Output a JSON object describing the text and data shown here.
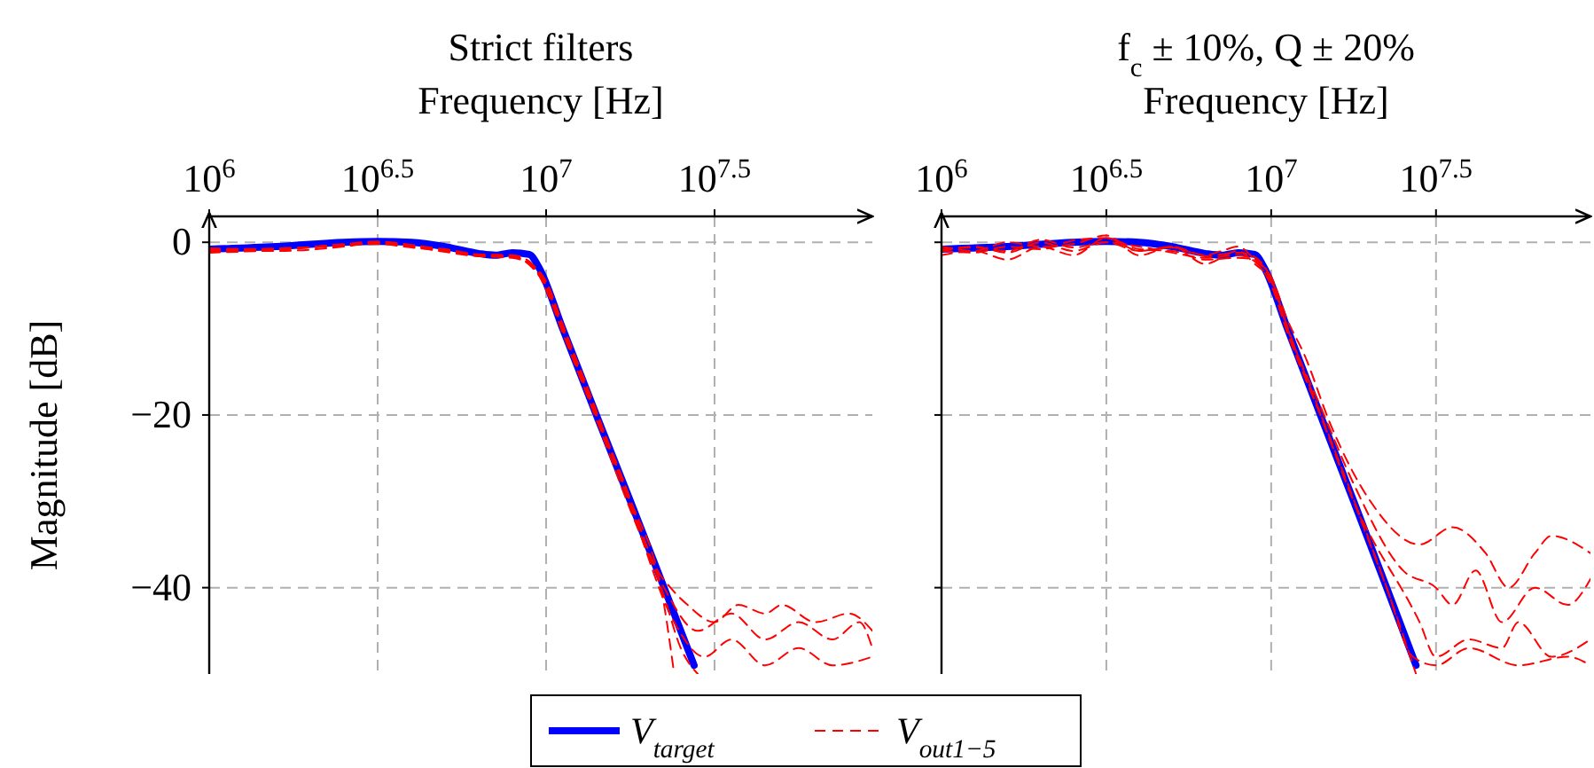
{
  "chart_data": [
    {
      "type": "line",
      "title": "Strict filters",
      "xlabel": "Frequency [Hz]",
      "ylabel": "Magnitude [dB]",
      "log": "x",
      "grid": true,
      "legend": "bottom",
      "xlim": [
        1000000,
        93000000
      ],
      "xticks": [
        {
          "value": 1000000,
          "label": "10$^{6}$"
        },
        {
          "value": 3162278,
          "label": "10$^{6.5}$"
        },
        {
          "value": 10000000,
          "label": "10$^{7}$"
        },
        {
          "value": 31622777,
          "label": "10$^{7.5}$"
        }
      ],
      "ylim": [
        -50,
        3
      ],
      "yticks": [
        0,
        -20,
        -40
      ],
      "series": [
        {
          "name": "V$_{target}$",
          "color": "#0000ff",
          "line_style": "solid",
          "x": [
            1000000.0,
            1580000.0,
            2510000.0,
            3160000.0,
            3980000.0,
            5010000.0,
            6310000.0,
            7080000.0,
            7940000.0,
            8910000.0,
            9550000.0,
            11200000.0,
            14100000.0,
            17800000.0,
            22400000.0,
            27500000.0
          ],
          "values": [
            -0.8,
            -0.5,
            0,
            0.1,
            0,
            -0.5,
            -1.3,
            -1.5,
            -1.2,
            -1.4,
            -3,
            -10,
            -20,
            -30,
            -40,
            -49
          ]
        },
        {
          "name": "V$_{out}$$_{1−5}$",
          "color": "#ff0000",
          "line_style": "dashed",
          "x": [
            1000000.0,
            1580000.0,
            2510000.0,
            3160000.0,
            3980000.0,
            5010000.0,
            6310000.0,
            7940000.0,
            8910000.0,
            10000000.0,
            11200000.0,
            14100000.0,
            17800000.0,
            21400000.0,
            23400000.0,
            26300000.0,
            31600000.0,
            37200000.0,
            44700000.0,
            50100000.0,
            63100000.0,
            79400000.0,
            93000000.0
          ],
          "values": [
            -1.2,
            -0.9,
            -0.3,
            -0.2,
            -0.6,
            -1.0,
            -1.6,
            -1.8,
            -2.5,
            -5,
            -10,
            -20,
            -30,
            -38,
            -40,
            -42,
            -44,
            -42,
            -43,
            -42,
            -44,
            -43,
            -45
          ]
        },
        {
          "color": "#ff0000",
          "line_style": "dashed",
          "x": [
            1000000.0,
            1580000.0,
            2510000.0,
            3160000.0,
            3980000.0,
            5010000.0,
            6310000.0,
            7940000.0,
            8910000.0,
            10000000.0,
            11200000.0,
            14100000.0,
            17800000.0,
            22400000.0,
            28200000.0,
            35500000.0,
            44700000.0,
            56200000.0,
            70800000.0,
            85100000.0,
            93000000.0
          ],
          "values": [
            -1,
            -1,
            -0.5,
            0,
            -0.4,
            -0.8,
            -1.4,
            -1.5,
            -2.2,
            -5.5,
            -10.5,
            -20.5,
            -31,
            -40,
            -45,
            -43,
            -46,
            -44,
            -46,
            -44,
            -47
          ]
        },
        {
          "color": "#ff0000",
          "line_style": "dashed",
          "x": [
            1000000.0,
            1580000.0,
            2510000.0,
            3160000.0,
            3980000.0,
            5010000.0,
            6310000.0,
            7940000.0,
            8910000.0,
            10000000.0,
            11200000.0,
            14100000.0,
            17800000.0,
            24000000.0,
            29500000.0,
            35500000.0,
            44700000.0,
            56200000.0,
            70800000.0,
            93000000.0
          ],
          "values": [
            -0.7,
            -0.8,
            -0.2,
            0.1,
            -0.3,
            -0.9,
            -1.5,
            -1.7,
            -2.4,
            -4.5,
            -9.5,
            -19.5,
            -30.5,
            -44,
            -48,
            -46,
            -49,
            -47,
            -49,
            -48
          ]
        },
        {
          "color": "#ff0000",
          "line_style": "dashed",
          "x": [
            1000000.0,
            1580000.0,
            2510000.0,
            3160000.0,
            3980000.0,
            5010000.0,
            6310000.0,
            7940000.0,
            8910000.0,
            10000000.0,
            11200000.0,
            14100000.0,
            17800000.0,
            22400000.0,
            25100000.0,
            28200000.0
          ],
          "values": [
            -0.9,
            -0.7,
            -0.4,
            0,
            -0.5,
            -1.1,
            -1.6,
            -1.6,
            -2.6,
            -5.2,
            -10.2,
            -20.2,
            -30.2,
            -41,
            -47,
            -50
          ]
        },
        {
          "color": "#ff0000",
          "line_style": "dashed",
          "x": [
            1000000.0,
            1580000.0,
            2510000.0,
            3160000.0,
            3980000.0,
            5010000.0,
            6310000.0,
            7940000.0,
            8910000.0,
            10000000.0,
            11200000.0,
            14100000.0,
            17800000.0,
            22400000.0,
            24000000.0
          ],
          "values": [
            -1,
            -0.8,
            -0.3,
            -0.1,
            -0.5,
            -0.9,
            -1.5,
            -1.7,
            -2.3,
            -4.8,
            -9.8,
            -19.8,
            -29.8,
            -42,
            -50
          ]
        }
      ]
    },
    {
      "type": "line",
      "title": "f$_{c}$ ± 10%, Q ± 20%",
      "xlabel": "Frequency [Hz]",
      "log": "x",
      "grid": true,
      "tick_labels": "x",
      "xlim": [
        1000000,
        93000000
      ],
      "xticks": [
        {
          "value": 1000000,
          "label": "10$^{6}$"
        },
        {
          "value": 3162278,
          "label": "10$^{6.5}$"
        },
        {
          "value": 10000000,
          "label": "10$^{7}$"
        },
        {
          "value": 31622777,
          "label": "10$^{7.5}$"
        }
      ],
      "ylim": [
        -50,
        3
      ],
      "yticks": [
        0,
        -20,
        -40
      ],
      "series": [
        {
          "color": "#0000ff",
          "line_style": "solid",
          "x": [
            1000000.0,
            1580000.0,
            2510000.0,
            3160000.0,
            3980000.0,
            5010000.0,
            6310000.0,
            7080000.0,
            7940000.0,
            8910000.0,
            9550000.0,
            11200000.0,
            14100000.0,
            17800000.0,
            22400000.0,
            27500000.0
          ],
          "values": [
            -0.8,
            -0.5,
            0,
            0.1,
            0,
            -0.5,
            -1.3,
            -1.5,
            -1.2,
            -1.4,
            -3,
            -10,
            -20,
            -30,
            -40,
            -49
          ]
        },
        {
          "color": "#ff0000",
          "line_style": "dashed",
          "x": [
            1000000.0,
            1260000.0,
            1580000.0,
            2000000.0,
            2510000.0,
            3160000.0,
            3980000.0,
            5010000.0,
            6310000.0,
            7080000.0,
            7940000.0,
            8910000.0,
            10000000.0,
            11200000.0,
            12600000.0,
            15100000.0,
            20000000.0,
            28200000.0,
            35500000.0,
            44700000.0,
            52500000.0,
            63100000.0,
            70800000.0,
            93000000.0
          ],
          "values": [
            -1.5,
            -1,
            -2,
            -0.5,
            -1.5,
            0.5,
            -1,
            -0.5,
            -1.5,
            -1,
            -0.5,
            -2,
            -4,
            -9,
            -13,
            -21,
            -30,
            -35,
            -33,
            -36,
            -40,
            -36,
            -34,
            -36
          ]
        },
        {
          "color": "#ff0000",
          "line_style": "dashed",
          "x": [
            1000000.0,
            1260000.0,
            1580000.0,
            2000000.0,
            2510000.0,
            3160000.0,
            3980000.0,
            5010000.0,
            6310000.0,
            7940000.0,
            8910000.0,
            10000000.0,
            11200000.0,
            14100000.0,
            17800000.0,
            25100000.0,
            31600000.0,
            35500000.0,
            41700000.0,
            50100000.0,
            63100000.0,
            79400000.0,
            93000000.0
          ],
          "values": [
            -0.5,
            -1,
            0,
            -0.5,
            -0.2,
            0.8,
            -1.5,
            -0.5,
            -2.5,
            -1,
            -2.5,
            -4.5,
            -10,
            -19,
            -28,
            -38,
            -40,
            -42,
            -38,
            -44,
            -40,
            -42,
            -39
          ]
        },
        {
          "color": "#ff0000",
          "line_style": "dashed",
          "x": [
            1000000.0,
            1260000.0,
            1580000.0,
            2000000.0,
            2510000.0,
            3160000.0,
            3980000.0,
            5010000.0,
            6310000.0,
            7940000.0,
            8910000.0,
            10000000.0,
            11200000.0,
            14100000.0,
            17800000.0,
            28200000.0,
            31600000.0,
            39800000.0,
            50100000.0,
            56200000.0,
            70800000.0,
            93000000.0
          ],
          "values": [
            -1,
            -0.5,
            -1.2,
            0,
            -1,
            0,
            -0.5,
            -1.2,
            -1.8,
            -1.5,
            -2.2,
            -5,
            -10.5,
            -20,
            -30,
            -44,
            -48,
            -46,
            -47,
            -44,
            -48,
            -46
          ]
        },
        {
          "color": "#ff0000",
          "line_style": "dashed",
          "x": [
            1000000.0,
            1260000.0,
            1580000.0,
            2000000.0,
            2510000.0,
            3160000.0,
            3980000.0,
            5010000.0,
            6310000.0,
            7940000.0,
            8910000.0,
            10000000.0,
            11200000.0,
            14100000.0,
            17800000.0,
            22400000.0,
            26900000.0,
            31600000.0,
            39800000.0,
            56200000.0,
            79400000.0,
            93000000.0
          ],
          "values": [
            -1,
            -1.2,
            -0.5,
            -0.8,
            0.2,
            0.5,
            -0.8,
            -1,
            -2,
            -1.8,
            -2,
            -4.5,
            -10,
            -20,
            -30,
            -40,
            -48,
            -49,
            -47,
            -49,
            -48,
            -49
          ]
        },
        {
          "color": "#ff0000",
          "line_style": "dashed",
          "x": [
            1000000.0,
            1260000.0,
            1580000.0,
            2000000.0,
            2510000.0,
            3160000.0,
            3980000.0,
            5010000.0,
            6310000.0,
            7940000.0,
            8910000.0,
            10000000.0,
            11200000.0,
            14100000.0,
            17800000.0,
            22400000.0,
            27500000.0
          ],
          "values": [
            -0.8,
            -0.6,
            -1,
            0.3,
            -0.6,
            0,
            -1,
            -0.6,
            -1.6,
            -1.2,
            -1.7,
            -4.2,
            -9.8,
            -19.8,
            -29.8,
            -40,
            -50
          ]
        }
      ]
    }
  ]
}
